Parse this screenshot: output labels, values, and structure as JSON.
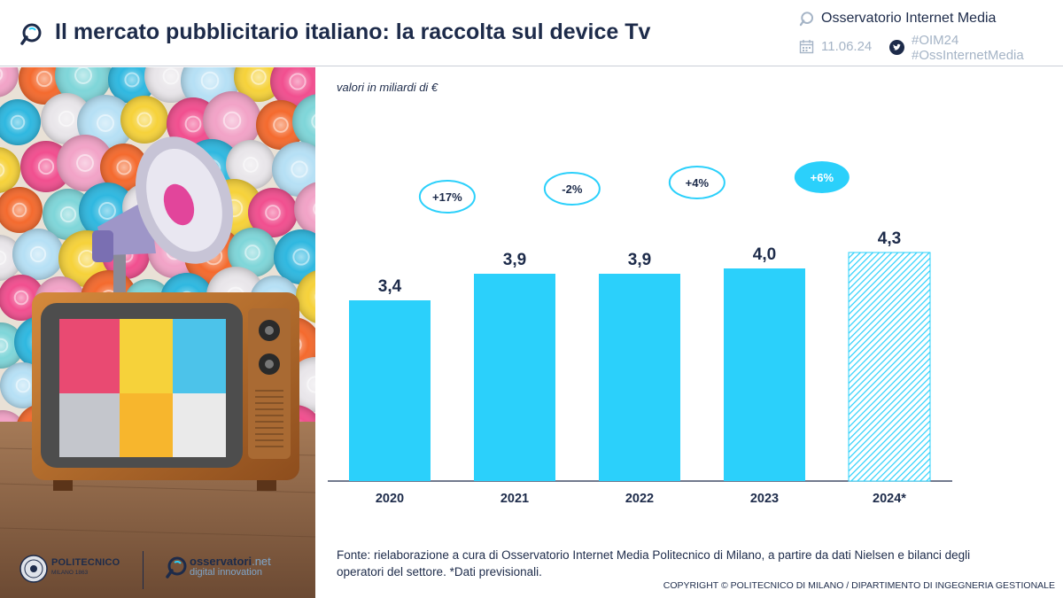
{
  "header": {
    "title": "Il mercato pubblicitario italiano: la raccolta sul device Tv",
    "brand": "Osservatorio Internet Media",
    "date": "11.06.24",
    "hashtags": [
      "#OIM24",
      "#OssInternetMedia"
    ]
  },
  "logos": {
    "polimi_name": "POLITECNICO",
    "polimi_sub": "MILANO 1863",
    "oss_name": "osservatori",
    "oss_name_suffix": ".net",
    "oss_sub": "digital innovation"
  },
  "chart_data": {
    "type": "bar",
    "unit_note": "valori in miliardi di €",
    "categories": [
      "2020",
      "2021",
      "2022",
      "2023",
      "2024*"
    ],
    "values": [
      3.4,
      3.9,
      3.9,
      4.0,
      4.3
    ],
    "value_labels": [
      "3,4",
      "3,9",
      "3,9",
      "4,0",
      "4,3"
    ],
    "growth_labels": [
      "+17%",
      "-2%",
      "+4%",
      "+6%"
    ],
    "forecast_category": "2024*",
    "colors": {
      "bar": "#2bd0fb",
      "forecast_hatch": "#2bd0fb",
      "growth_highlight": "#2bd0fb",
      "text": "#1d2b4a",
      "axis": "#1d2b4a"
    },
    "grid": false
  },
  "footer": {
    "source": "Fonte: rielaborazione a cura di Osservatorio Internet Media Politecnico di Milano, a partire da dati Nielsen e bilanci degli operatori del settore. *Dati previsionali.",
    "copyright": "COPYRIGHT © POLITECNICO DI MILANO / DIPARTIMENTO DI INGEGNERIA GESTIONALE"
  },
  "photo": {
    "colors": [
      "#f2a3c7",
      "#2fb8e0",
      "#f6d23a",
      "#f46a2e",
      "#e9e6ea",
      "#f14f8f",
      "#7fd6d9",
      "#b6e0f5"
    ]
  }
}
